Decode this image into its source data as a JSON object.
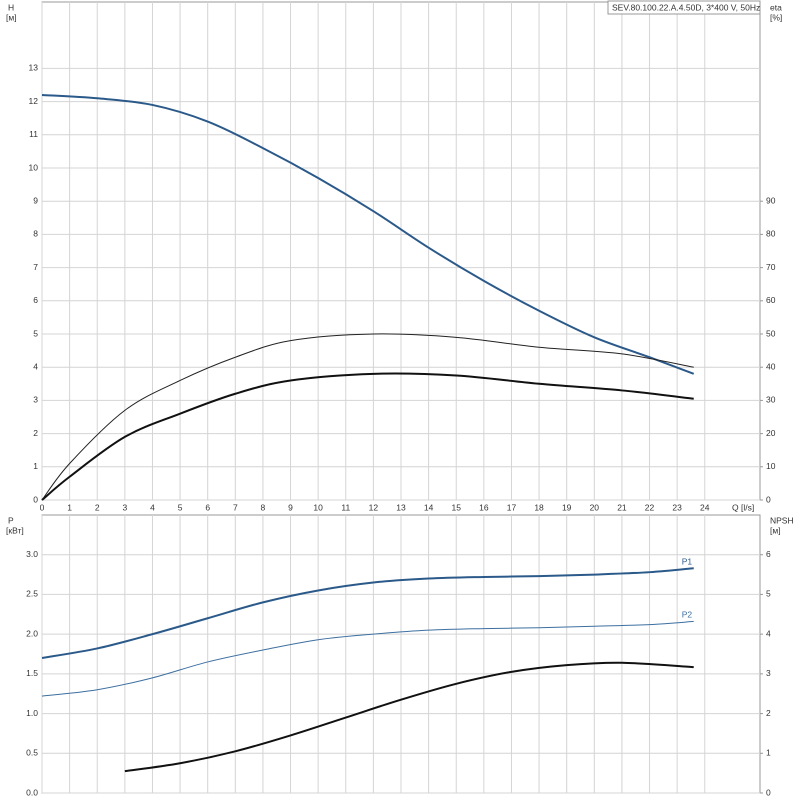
{
  "chart_data": [
    {
      "type": "line",
      "annotation": "SEV.80.100.22.A.4.50D, 3*400 V, 50Hz",
      "ylabel": "H",
      "yunit": "[м]",
      "y2label": "eta",
      "y2unit": "[%]",
      "xlabel": "Q [l/s]",
      "xlim": [
        0,
        26
      ],
      "xticks": [
        0,
        1,
        2,
        3,
        4,
        5,
        6,
        7,
        8,
        9,
        10,
        11,
        12,
        13,
        14,
        15,
        16,
        17,
        18,
        19,
        20,
        21,
        22,
        23,
        24
      ],
      "ylim": [
        0,
        15
      ],
      "yticks": [
        0,
        1,
        2,
        3,
        4,
        5,
        6,
        7,
        8,
        9,
        10,
        11,
        12,
        13
      ],
      "y2lim": [
        0,
        150
      ],
      "y2ticks": [
        0,
        10,
        20,
        30,
        40,
        50,
        60,
        70,
        80,
        90
      ],
      "grid": true,
      "series": [
        {
          "color": "#2b5a8a",
          "width": 2,
          "x": [
            0,
            2,
            4,
            6,
            8,
            10,
            12,
            14,
            16,
            18,
            20,
            22,
            23.6
          ],
          "values": [
            12.2,
            12.1,
            11.9,
            11.4,
            10.6,
            9.7,
            8.7,
            7.6,
            6.6,
            5.7,
            4.9,
            4.3,
            3.8
          ]
        },
        {
          "color": "#222222",
          "width": 1,
          "axis": "y2",
          "x": [
            0,
            1,
            3,
            5,
            7,
            9,
            12,
            15,
            18,
            21,
            23.6
          ],
          "values": [
            0,
            11,
            27,
            36,
            43,
            48,
            50,
            49,
            46,
            44,
            40
          ]
        },
        {
          "color": "#111111",
          "width": 2,
          "axis": "y2",
          "x": [
            0,
            1,
            3,
            5,
            7,
            9,
            12,
            15,
            18,
            21,
            23.6
          ],
          "values": [
            0,
            7,
            19,
            26,
            32,
            36,
            38,
            37.5,
            35,
            33,
            30.5
          ]
        }
      ]
    },
    {
      "type": "line",
      "ylabel": "P",
      "yunit": "[кВт]",
      "y2label": "NPSH",
      "y2unit": "[м]",
      "xlim": [
        0,
        26
      ],
      "xgrid": [
        0,
        1,
        2,
        3,
        4,
        5,
        6,
        7,
        8,
        9,
        10,
        11,
        12,
        13,
        14,
        15,
        16,
        17,
        18,
        19,
        20,
        21,
        22,
        23,
        24
      ],
      "ylim": [
        0,
        3.5
      ],
      "yticks": [
        {
          "value": 0,
          "label": "0.0"
        },
        0.5,
        {
          "value": 1,
          "label": "1.0"
        },
        1.5,
        {
          "value": 2,
          "label": "2.0"
        },
        2.5,
        {
          "value": 3,
          "label": "3.0"
        }
      ],
      "y2lim": [
        0,
        7
      ],
      "y2ticks": [
        0,
        1,
        2,
        3,
        4,
        5,
        6
      ],
      "grid": true,
      "series": [
        {
          "name": "P1",
          "color": "#2b5a8a",
          "width": 2,
          "x": [
            0,
            2,
            4,
            6,
            8,
            10,
            12,
            14,
            16,
            18,
            20,
            22,
            23.6
          ],
          "values": [
            1.7,
            1.82,
            2.0,
            2.2,
            2.4,
            2.55,
            2.65,
            2.7,
            2.72,
            2.73,
            2.75,
            2.78,
            2.83
          ]
        },
        {
          "name": "P2",
          "color": "#3d6fa0",
          "width": 1,
          "x": [
            0,
            2,
            4,
            6,
            8,
            10,
            12,
            14,
            16,
            18,
            20,
            22,
            23.6
          ],
          "values": [
            1.22,
            1.3,
            1.45,
            1.65,
            1.8,
            1.93,
            2.0,
            2.05,
            2.07,
            2.08,
            2.1,
            2.12,
            2.16
          ]
        },
        {
          "color": "#111111",
          "width": 2,
          "axis": "y2",
          "x": [
            3,
            5,
            7,
            9,
            11,
            13,
            15,
            17,
            19,
            21,
            23.6
          ],
          "values": [
            0.55,
            0.75,
            1.05,
            1.45,
            1.9,
            2.35,
            2.75,
            3.05,
            3.22,
            3.28,
            3.17
          ]
        }
      ]
    }
  ]
}
